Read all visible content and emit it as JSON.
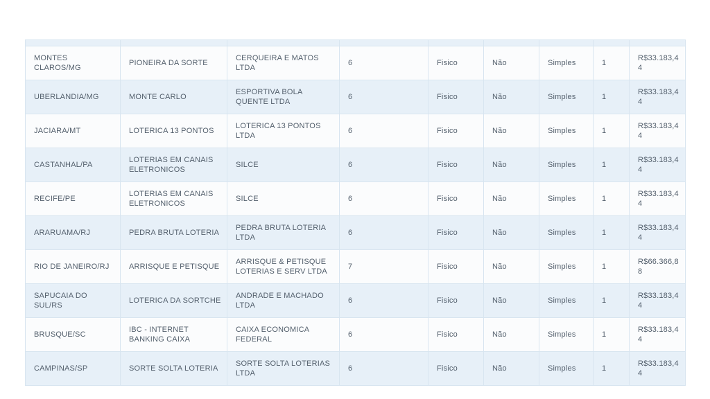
{
  "theme": {
    "page_background": "#ffffff",
    "row_blue": "#e7f0f8",
    "row_white": "#fbfcfd",
    "grid_border": "#d8e5f0",
    "text_color": "#54606d"
  },
  "table": {
    "partial_row_cut_off_at_top": true,
    "column_count": 9,
    "rows": [
      {
        "cells": [
          "MONTES CLAROS/MG",
          "PIONEIRA DA SORTE",
          "CERQUEIRA E MATOS LTDA",
          "6",
          "Fisico",
          "Não",
          "Simples",
          "1",
          "R$33.183,44"
        ]
      },
      {
        "cells": [
          "UBERLANDIA/MG",
          "MONTE CARLO",
          "ESPORTIVA BOLA QUENTE LTDA",
          "6",
          "Fisico",
          "Não",
          "Simples",
          "1",
          "R$33.183,44"
        ]
      },
      {
        "cells": [
          "JACIARA/MT",
          "LOTERICA 13 PONTOS",
          "LOTERICA 13 PONTOS LTDA",
          "6",
          "Fisico",
          "Não",
          "Simples",
          "1",
          "R$33.183,44"
        ]
      },
      {
        "cells": [
          "CASTANHAL/PA",
          "LOTERIAS EM CANAIS ELETRONICOS",
          "SILCE",
          "6",
          "Fisico",
          "Não",
          "Simples",
          "1",
          "R$33.183,44"
        ]
      },
      {
        "cells": [
          "RECIFE/PE",
          "LOTERIAS EM CANAIS ELETRONICOS",
          "SILCE",
          "6",
          "Fisico",
          "Não",
          "Simples",
          "1",
          "R$33.183,44"
        ]
      },
      {
        "cells": [
          "ARARUAMA/RJ",
          "PEDRA BRUTA LOTERIA",
          "PEDRA BRUTA LOTERIA LTDA",
          "6",
          "Fisico",
          "Não",
          "Simples",
          "1",
          "R$33.183,44"
        ]
      },
      {
        "cells": [
          "RIO DE JANEIRO/RJ",
          "ARRISQUE E PETISQUE",
          "ARRISQUE & PETISQUE LOTERIAS E SERV LTDA",
          "7",
          "Fisico",
          "Não",
          "Simples",
          "1",
          "R$66.366,88"
        ]
      },
      {
        "cells": [
          "SAPUCAIA DO SUL/RS",
          "LOTERICA DA SORTCHE",
          "ANDRADE E MACHADO LTDA",
          "6",
          "Fisico",
          "Não",
          "Simples",
          "1",
          "R$33.183,44"
        ]
      },
      {
        "cells": [
          "BRUSQUE/SC",
          "IBC - INTERNET BANKING CAIXA",
          "CAIXA ECONOMICA FEDERAL",
          "6",
          "Fisico",
          "Não",
          "Simples",
          "1",
          "R$33.183,44"
        ]
      },
      {
        "cells": [
          "CAMPINAS/SP",
          "SORTE SOLTA LOTERIA",
          "SORTE SOLTA LOTERIAS LTDA",
          "6",
          "Fisico",
          "Não",
          "Simples",
          "1",
          "R$33.183,44"
        ]
      }
    ]
  }
}
